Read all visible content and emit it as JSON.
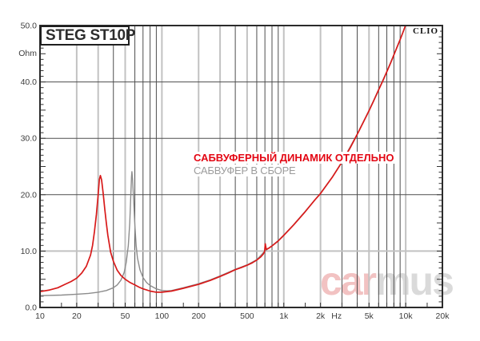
{
  "header": {
    "brand": "CLIO"
  },
  "watermark": {
    "part1": "car",
    "part2": "mus",
    "part1_color": "#f2c2c2",
    "part2_color": "#dadada"
  },
  "legend": {
    "series1_label": "САБВУФЕРНЫЙ ДИНАМИК ОТДЕЛЬНО",
    "series2_label": "САБВУФЕР В СБОРЕ",
    "series1_color": "#e30613",
    "series2_color": "#9c9c9c"
  },
  "chart_data": {
    "type": "line",
    "title": "STEG ST10P",
    "xlabel": "Hz",
    "ylabel": "Ohm",
    "x_scale": "log",
    "xlim": [
      10,
      20000
    ],
    "ylim": [
      0,
      50
    ],
    "grid": true,
    "legend_position": "inside-center",
    "x_ticks": [
      {
        "f": 10,
        "label": "10"
      },
      {
        "f": 20,
        "label": "20"
      },
      {
        "f": 50,
        "label": "50"
      },
      {
        "f": 100,
        "label": "100"
      },
      {
        "f": 200,
        "label": "200"
      },
      {
        "f": 500,
        "label": "500"
      },
      {
        "f": 1000,
        "label": "1k"
      },
      {
        "f": 2000,
        "label": "2k"
      },
      {
        "f": 5000,
        "label": "5k"
      },
      {
        "f": 10000,
        "label": "10k"
      },
      {
        "f": 20000,
        "label": "20k"
      }
    ],
    "x_unit_label": {
      "f": 2710,
      "label": "Hz"
    },
    "y_ticks": [
      {
        "v": 0,
        "label": "0.0"
      },
      {
        "v": 10,
        "label": "10.0"
      },
      {
        "v": 20,
        "label": "20.0"
      },
      {
        "v": 30,
        "label": "30.0"
      },
      {
        "v": 40,
        "label": "40.0"
      },
      {
        "v": 50,
        "label": "50.0"
      }
    ],
    "x_gridlines_light": [
      20,
      30,
      50,
      100,
      200,
      300,
      500,
      1000,
      2000,
      5000,
      10000
    ],
    "x_gridlines_dark": [
      40,
      60,
      70,
      80,
      90,
      400,
      600,
      700,
      800,
      900,
      3000,
      4000,
      6000,
      7000,
      8000,
      9000
    ],
    "x_tick_marks_extra": [
      15,
      150,
      1500,
      15000
    ],
    "y_gridlines_light": [
      10
    ],
    "y_gridlines_dark": [
      20,
      30,
      40
    ],
    "colors": {
      "grid_light": "#c2c2c2",
      "grid_dark": "#4e4e4e",
      "border": "#2b2b2b",
      "tick": "#333333",
      "label": "#3d3d3d"
    },
    "series": [
      {
        "name": "САБВУФЕРНЫЙ ДИНАМИК ОТДЕЛЬНО",
        "color": "#d81a1a",
        "width": 1.7,
        "points": [
          [
            10,
            2.8
          ],
          [
            12,
            3.1
          ],
          [
            14,
            3.5
          ],
          [
            16,
            4.1
          ],
          [
            18,
            4.6
          ],
          [
            20,
            5.2
          ],
          [
            22,
            6.1
          ],
          [
            24,
            7.3
          ],
          [
            26,
            9.3
          ],
          [
            27,
            11.0
          ],
          [
            28,
            13.5
          ],
          [
            29,
            16.5
          ],
          [
            30,
            20.0
          ],
          [
            30.7,
            22.7
          ],
          [
            31.3,
            23.4
          ],
          [
            32,
            22.6
          ],
          [
            33,
            20.2
          ],
          [
            34,
            17.4
          ],
          [
            35,
            15.0
          ],
          [
            36,
            12.8
          ],
          [
            38,
            9.8
          ],
          [
            40,
            8.2
          ],
          [
            43,
            6.6
          ],
          [
            46,
            5.7
          ],
          [
            50,
            5.0
          ],
          [
            55,
            4.4
          ],
          [
            60,
            4.0
          ],
          [
            65,
            3.6
          ],
          [
            70,
            3.3
          ],
          [
            75,
            3.1
          ],
          [
            80,
            2.9
          ],
          [
            90,
            2.7
          ],
          [
            100,
            2.7
          ],
          [
            120,
            2.9
          ],
          [
            150,
            3.4
          ],
          [
            200,
            4.1
          ],
          [
            250,
            4.8
          ],
          [
            300,
            5.5
          ],
          [
            350,
            6.1
          ],
          [
            400,
            6.7
          ],
          [
            450,
            7.1
          ],
          [
            500,
            7.5
          ],
          [
            550,
            7.9
          ],
          [
            600,
            8.4
          ],
          [
            650,
            9.0
          ],
          [
            680,
            9.5
          ],
          [
            695,
            9.9
          ],
          [
            705,
            11.3
          ],
          [
            718,
            10.3
          ],
          [
            750,
            10.5
          ],
          [
            800,
            10.9
          ],
          [
            900,
            11.8
          ],
          [
            1000,
            12.8
          ],
          [
            1200,
            14.6
          ],
          [
            1500,
            17.0
          ],
          [
            1800,
            19.1
          ],
          [
            2000,
            20.2
          ],
          [
            2500,
            23.1
          ],
          [
            3000,
            25.8
          ],
          [
            3500,
            28.3
          ],
          [
            4000,
            30.7
          ],
          [
            4500,
            32.9
          ],
          [
            5000,
            34.9
          ],
          [
            5500,
            36.8
          ],
          [
            6000,
            38.6
          ],
          [
            6500,
            40.2
          ],
          [
            7000,
            41.8
          ],
          [
            7500,
            43.3
          ],
          [
            8000,
            44.8
          ],
          [
            8500,
            46.2
          ],
          [
            9000,
            47.5
          ],
          [
            9500,
            48.8
          ],
          [
            10000,
            50.1
          ],
          [
            10400,
            51.5
          ]
        ]
      },
      {
        "name": "САБВУФЕР В СБОРЕ",
        "color": "#8c8c8c",
        "width": 1.4,
        "points": [
          [
            10,
            2.1
          ],
          [
            15,
            2.2
          ],
          [
            20,
            2.35
          ],
          [
            25,
            2.5
          ],
          [
            30,
            2.7
          ],
          [
            35,
            3.0
          ],
          [
            40,
            3.5
          ],
          [
            43,
            4.0
          ],
          [
            46,
            4.8
          ],
          [
            49,
            6.2
          ],
          [
            51,
            8.0
          ],
          [
            53,
            11.0
          ],
          [
            54.5,
            15.0
          ],
          [
            55.5,
            19.5
          ],
          [
            56.3,
            23.2
          ],
          [
            56.8,
            24.1
          ],
          [
            57.5,
            22.6
          ],
          [
            58.5,
            19.5
          ],
          [
            60,
            14.5
          ],
          [
            61.5,
            11.0
          ],
          [
            63,
            8.8
          ],
          [
            66,
            6.7
          ],
          [
            70,
            5.3
          ],
          [
            75,
            4.4
          ],
          [
            80,
            3.9
          ],
          [
            90,
            3.3
          ],
          [
            100,
            3.0
          ],
          [
            110,
            2.95
          ],
          [
            120,
            3.0
          ],
          [
            150,
            3.5
          ],
          [
            200,
            4.2
          ],
          [
            250,
            4.9
          ],
          [
            300,
            5.6
          ],
          [
            400,
            6.75
          ],
          [
            500,
            7.55
          ],
          [
            600,
            8.45
          ],
          [
            700,
            10.0
          ],
          [
            800,
            10.95
          ],
          [
            900,
            11.85
          ],
          [
            1000,
            12.85
          ],
          [
            1200,
            14.65
          ],
          [
            1500,
            17.05
          ],
          [
            2000,
            20.25
          ],
          [
            2500,
            23.15
          ],
          [
            3000,
            25.85
          ],
          [
            4000,
            30.75
          ],
          [
            5000,
            34.95
          ],
          [
            6000,
            38.65
          ],
          [
            7000,
            41.85
          ],
          [
            8000,
            44.85
          ],
          [
            9000,
            47.55
          ],
          [
            10000,
            50.1
          ],
          [
            10400,
            51.5
          ]
        ]
      }
    ]
  }
}
